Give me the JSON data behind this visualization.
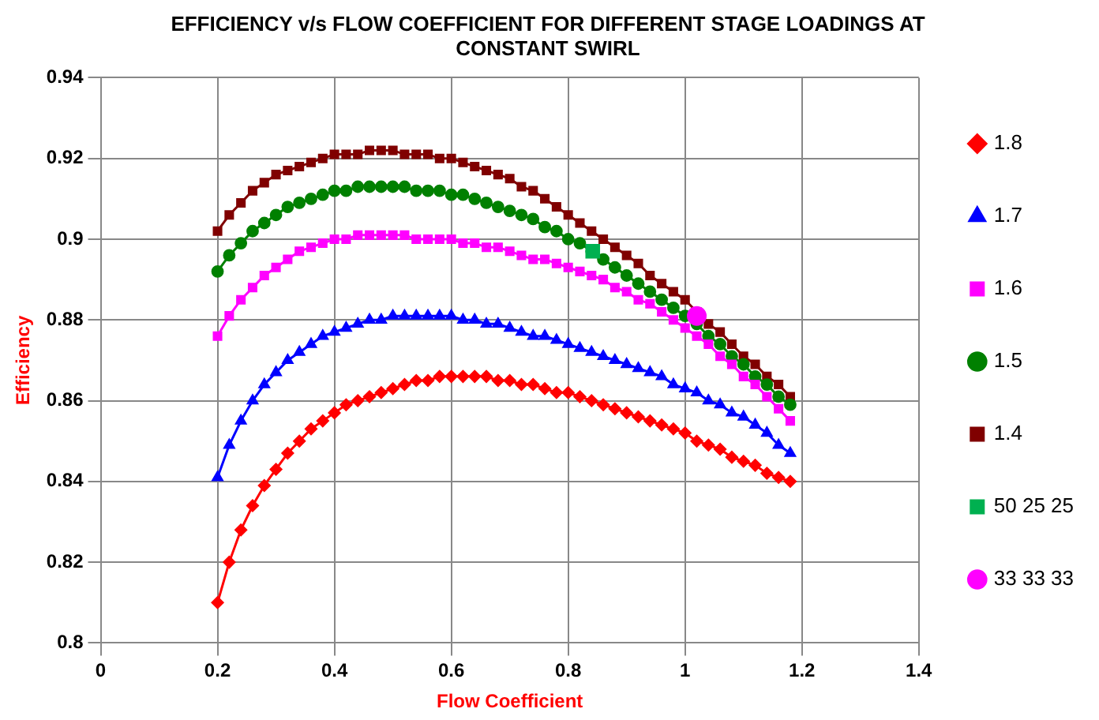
{
  "chart_data": {
    "type": "line",
    "title": "EFFICIENCY v/s FLOW COEFFICIENT FOR DIFFERENT STAGE LOADINGS AT CONSTANT SWIRL",
    "xlabel": "Flow Coefficient",
    "ylabel": "Efficiency",
    "x": [
      0.2,
      0.22,
      0.24,
      0.26,
      0.28,
      0.3,
      0.32,
      0.34,
      0.36,
      0.38,
      0.4,
      0.42,
      0.44,
      0.46,
      0.48,
      0.5,
      0.52,
      0.54,
      0.56,
      0.58,
      0.6,
      0.62,
      0.64,
      0.66,
      0.68,
      0.7,
      0.72,
      0.74,
      0.76,
      0.78,
      0.8,
      0.82,
      0.84,
      0.86,
      0.88,
      0.9,
      0.92,
      0.94,
      0.96,
      0.98,
      1.0,
      1.02,
      1.04,
      1.06,
      1.08,
      1.1,
      1.12,
      1.14,
      1.16,
      1.18
    ],
    "series": [
      {
        "name": "1.8",
        "color": "#ff0000",
        "marker": "diamond",
        "values": [
          0.81,
          0.82,
          0.828,
          0.834,
          0.839,
          0.843,
          0.847,
          0.85,
          0.853,
          0.855,
          0.857,
          0.859,
          0.86,
          0.861,
          0.862,
          0.863,
          0.864,
          0.865,
          0.865,
          0.866,
          0.866,
          0.866,
          0.866,
          0.866,
          0.865,
          0.865,
          0.864,
          0.864,
          0.863,
          0.862,
          0.862,
          0.861,
          0.86,
          0.859,
          0.858,
          0.857,
          0.856,
          0.855,
          0.854,
          0.853,
          0.852,
          0.85,
          0.849,
          0.848,
          0.846,
          0.845,
          0.844,
          0.842,
          0.841,
          0.84
        ]
      },
      {
        "name": "1.7",
        "color": "#0000ff",
        "marker": "triangle",
        "values": [
          0.841,
          0.849,
          0.855,
          0.86,
          0.864,
          0.867,
          0.87,
          0.872,
          0.874,
          0.876,
          0.877,
          0.878,
          0.879,
          0.88,
          0.88,
          0.881,
          0.881,
          0.881,
          0.881,
          0.881,
          0.881,
          0.88,
          0.88,
          0.879,
          0.879,
          0.878,
          0.877,
          0.876,
          0.876,
          0.875,
          0.874,
          0.873,
          0.872,
          0.871,
          0.87,
          0.869,
          0.868,
          0.867,
          0.866,
          0.864,
          0.863,
          0.862,
          0.86,
          0.859,
          0.857,
          0.856,
          0.854,
          0.852,
          0.849,
          0.847
        ]
      },
      {
        "name": "1.6",
        "color": "#ff00ff",
        "marker": "square",
        "values": [
          0.876,
          0.881,
          0.885,
          0.888,
          0.891,
          0.893,
          0.895,
          0.897,
          0.898,
          0.899,
          0.9,
          0.9,
          0.901,
          0.901,
          0.901,
          0.901,
          0.901,
          0.9,
          0.9,
          0.9,
          0.9,
          0.899,
          0.899,
          0.898,
          0.898,
          0.897,
          0.896,
          0.895,
          0.895,
          0.894,
          0.893,
          0.892,
          0.891,
          0.89,
          0.888,
          0.887,
          0.885,
          0.884,
          0.882,
          0.88,
          0.878,
          0.876,
          0.874,
          0.871,
          0.869,
          0.866,
          0.864,
          0.861,
          0.858,
          0.855
        ]
      },
      {
        "name": "1.5",
        "color": "#008000",
        "marker": "circle",
        "values": [
          0.892,
          0.896,
          0.899,
          0.902,
          0.904,
          0.906,
          0.908,
          0.909,
          0.91,
          0.911,
          0.912,
          0.912,
          0.913,
          0.913,
          0.913,
          0.913,
          0.913,
          0.912,
          0.912,
          0.912,
          0.911,
          0.911,
          0.91,
          0.909,
          0.908,
          0.907,
          0.906,
          0.905,
          0.903,
          0.902,
          0.9,
          0.899,
          0.897,
          0.895,
          0.893,
          0.891,
          0.889,
          0.887,
          0.885,
          0.883,
          0.881,
          0.879,
          0.876,
          0.874,
          0.871,
          0.869,
          0.866,
          0.864,
          0.861,
          0.859
        ]
      },
      {
        "name": "1.4",
        "color": "#800000",
        "marker": "square",
        "values": [
          0.902,
          0.906,
          0.909,
          0.912,
          0.914,
          0.916,
          0.917,
          0.918,
          0.919,
          0.92,
          0.921,
          0.921,
          0.921,
          0.922,
          0.922,
          0.922,
          0.921,
          0.921,
          0.921,
          0.92,
          0.92,
          0.919,
          0.918,
          0.917,
          0.916,
          0.915,
          0.913,
          0.912,
          0.91,
          0.908,
          0.906,
          0.904,
          0.902,
          0.9,
          0.898,
          0.896,
          0.894,
          0.891,
          0.889,
          0.887,
          0.885,
          0.882,
          0.879,
          0.877,
          0.874,
          0.871,
          0.869,
          0.866,
          0.864,
          0.861
        ]
      },
      {
        "name": "50 25 25",
        "type": "scatter",
        "color": "#00b050",
        "marker": "square",
        "x": [
          0.842
        ],
        "values": [
          0.897
        ]
      },
      {
        "name": "33 33 33",
        "type": "scatter",
        "color": "#ff00ff",
        "marker": "circle",
        "x": [
          1.02
        ],
        "values": [
          0.881
        ]
      }
    ],
    "xlim": [
      0,
      1.4
    ],
    "xticks": [
      0,
      0.2,
      0.4,
      0.6,
      0.8,
      1,
      1.2,
      1.4
    ],
    "ylim": [
      0.8,
      0.94
    ],
    "yticks": [
      0.8,
      0.82,
      0.84,
      0.86,
      0.88,
      0.9,
      0.92,
      0.94
    ],
    "grid": true,
    "legend": "right"
  }
}
